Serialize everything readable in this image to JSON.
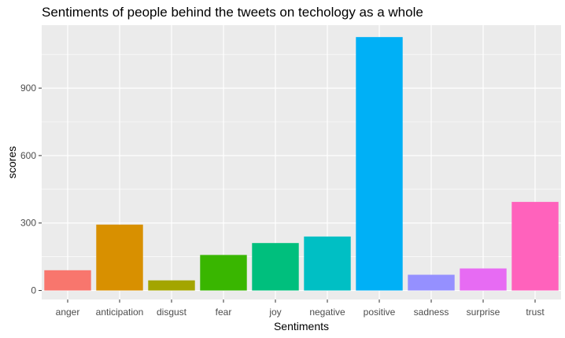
{
  "chart_data": {
    "type": "bar",
    "title": "Sentiments of people behind the tweets on techology as a whole",
    "xlabel": "Sentiments",
    "ylabel": "scores",
    "categories": [
      "anger",
      "anticipation",
      "disgust",
      "fear",
      "joy",
      "negative",
      "positive",
      "sadness",
      "surprise",
      "trust"
    ],
    "values": [
      90,
      293,
      45,
      158,
      211,
      240,
      1127,
      70,
      98,
      394
    ],
    "colors": [
      "#F8766D",
      "#D89000",
      "#A3A500",
      "#39B600",
      "#00BF7D",
      "#00BFC4",
      "#00B0F6",
      "#9590FF",
      "#E76BF3",
      "#FF62BC"
    ],
    "ylim": [
      -40,
      1180
    ],
    "yticks": [
      0,
      300,
      600,
      900
    ],
    "grid": true,
    "legend": "none",
    "panel_background": "#EBEBEB",
    "grid_color": "#FFFFFF"
  }
}
